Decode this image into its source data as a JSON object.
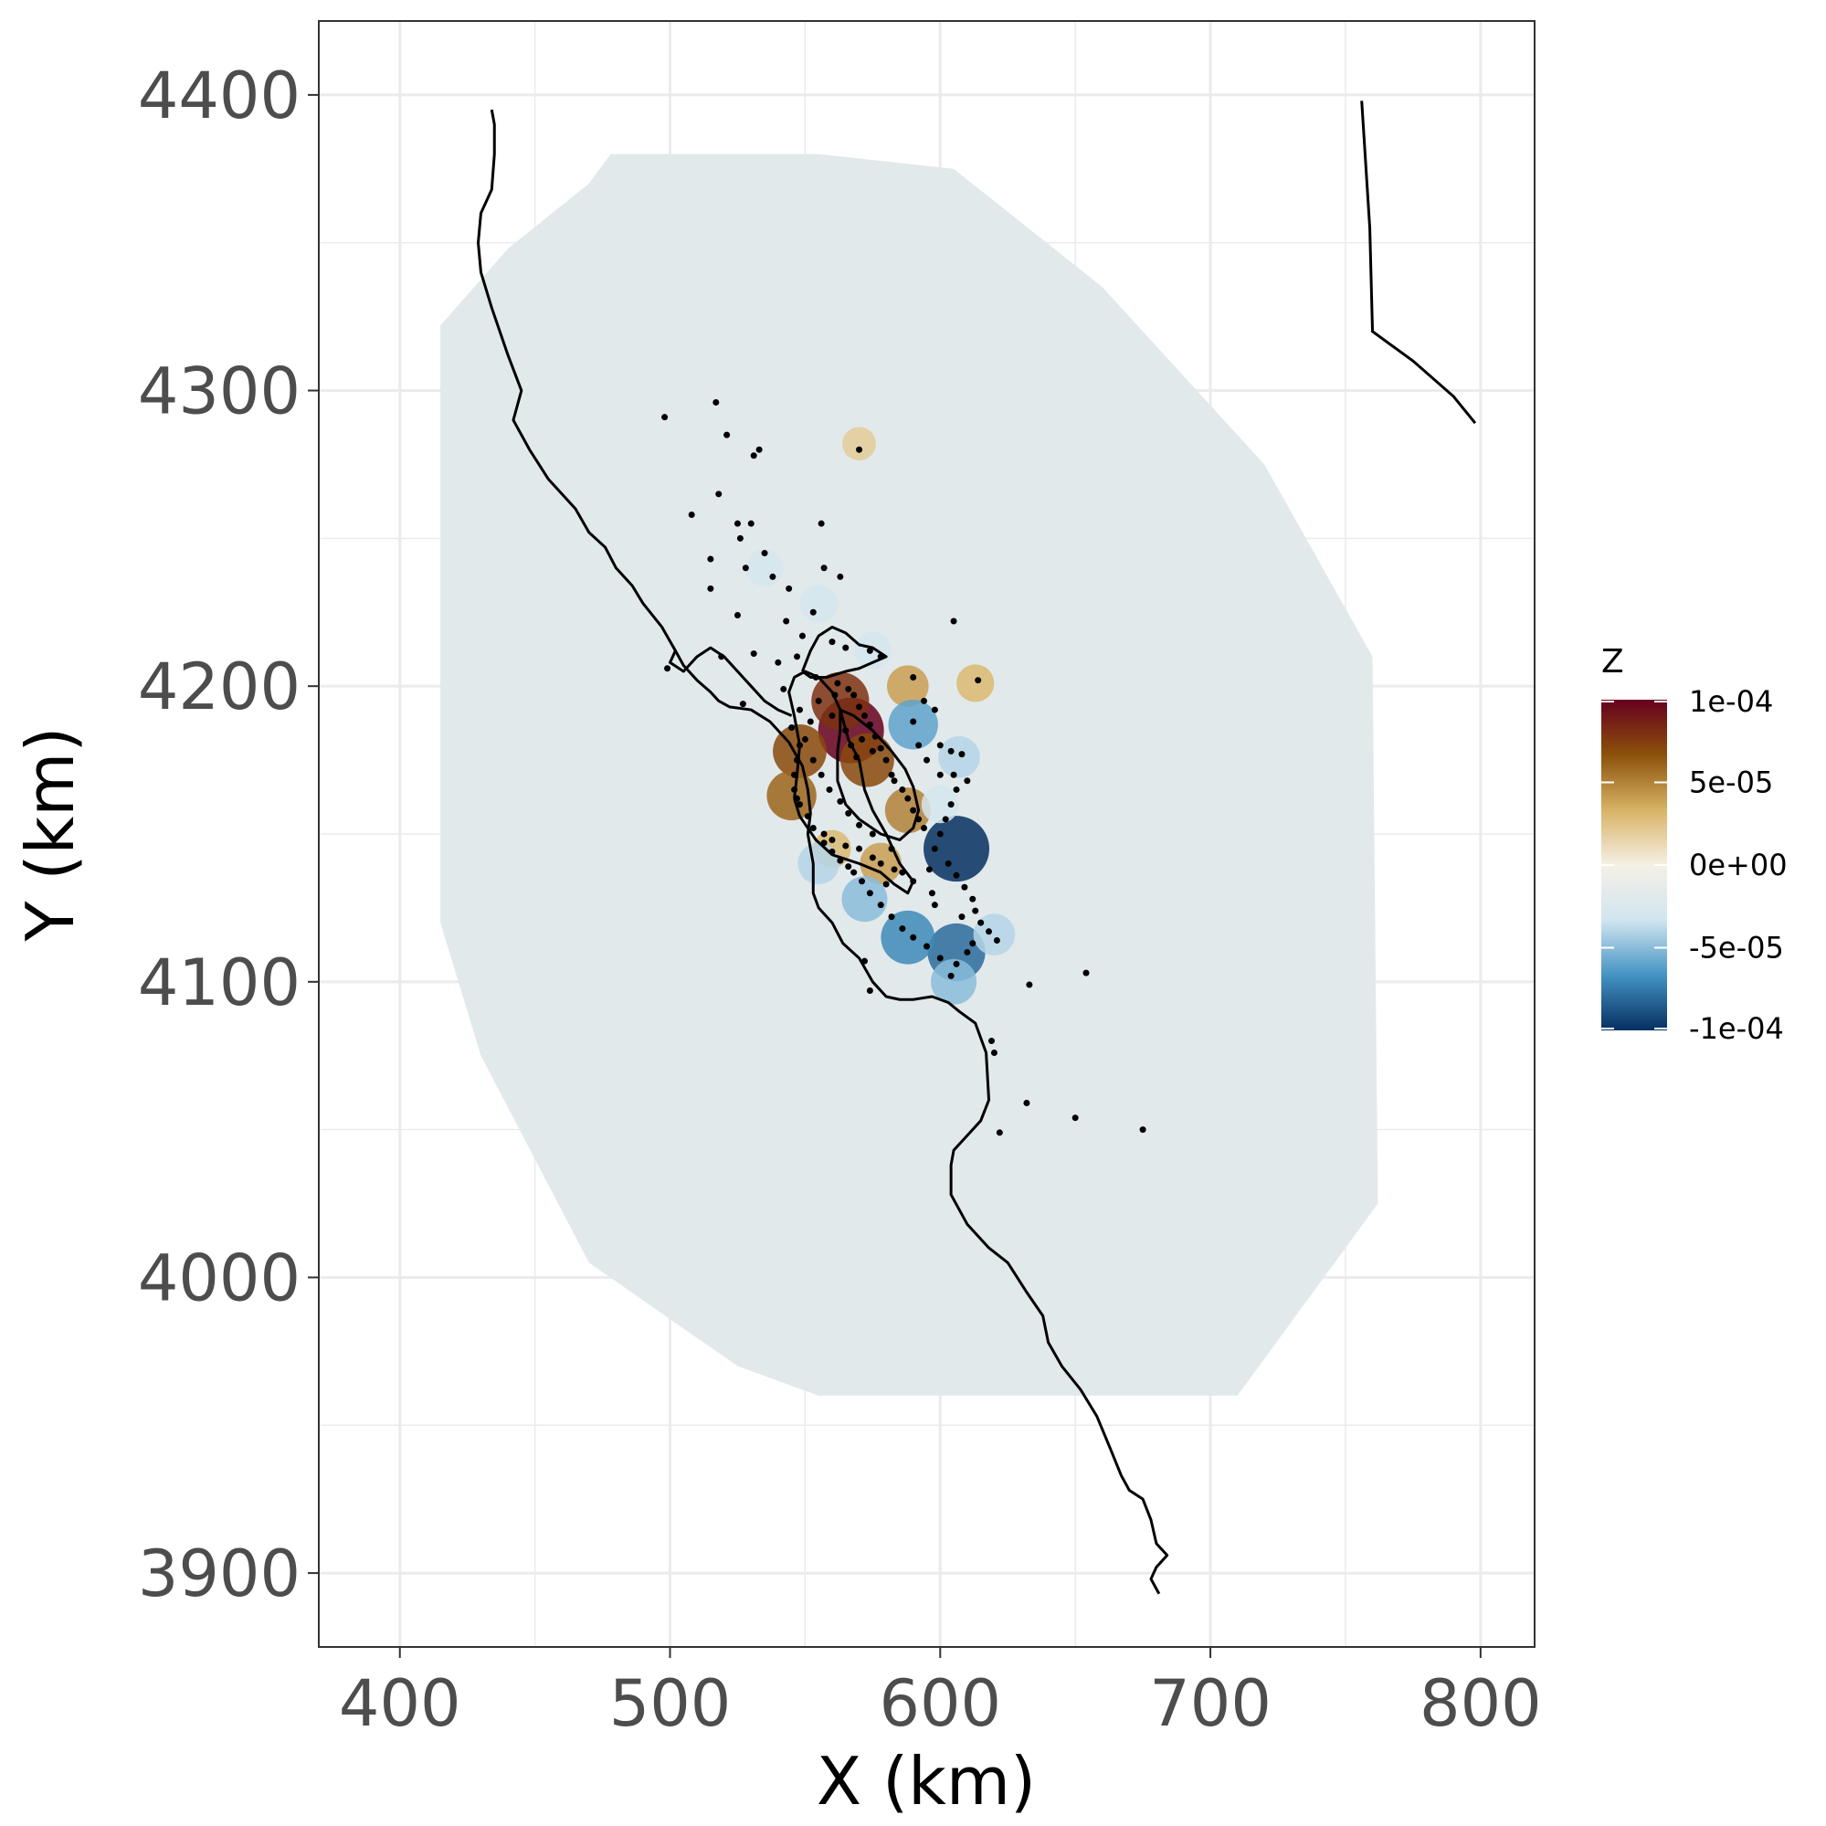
{
  "chart_data": {
    "type": "heatmap",
    "xlabel": "X (km)",
    "ylabel": "Y (km)",
    "xlim": [
      370,
      820
    ],
    "ylim": [
      3875,
      4425
    ],
    "x_ticks": [
      400,
      500,
      600,
      700,
      800
    ],
    "y_ticks": [
      3900,
      4000,
      4100,
      4200,
      4300,
      4400
    ],
    "x_tick_labels": [
      "400",
      "500",
      "600",
      "700",
      "800"
    ],
    "y_tick_labels": [
      "3900",
      "4000",
      "4100",
      "4200",
      "4300",
      "4400"
    ],
    "grid": true,
    "legend": {
      "title": "Z",
      "placement": "right",
      "ticks": [
        0.0001,
        5e-05,
        0,
        -5e-05,
        -0.0001
      ],
      "tick_labels": [
        "1e-04",
        "5e-05",
        "0e+00",
        "-5e-05",
        "-1e-04"
      ],
      "colors": [
        "#67001f",
        "#8c510a",
        "#d8b365",
        "#f5f0e6",
        "#d1e5f0",
        "#4393c3",
        "#053061"
      ],
      "range": [
        -0.0001,
        0.0001
      ]
    },
    "background_value_color": "#e2e9eb",
    "domain_polygon": [
      [
        415,
        4322
      ],
      [
        440,
        4348
      ],
      [
        470,
        4370
      ],
      [
        478,
        4380
      ],
      [
        555,
        4380
      ],
      [
        605,
        4375
      ],
      [
        660,
        4335
      ],
      [
        720,
        4275
      ],
      [
        760,
        4210
      ],
      [
        762,
        4025
      ],
      [
        730,
        3985
      ],
      [
        710,
        3960
      ],
      [
        555,
        3960
      ],
      [
        525,
        3970
      ],
      [
        470,
        4005
      ],
      [
        430,
        4075
      ],
      [
        415,
        4120
      ]
    ],
    "anomalies": [
      {
        "x": 567,
        "y": 4185,
        "z": 0.0001
      },
      {
        "x": 563,
        "y": 4195,
        "z": 8e-05
      },
      {
        "x": 573,
        "y": 4175,
        "z": 7e-05
      },
      {
        "x": 548,
        "y": 4178,
        "z": 7e-05
      },
      {
        "x": 545,
        "y": 4163,
        "z": 6e-05
      },
      {
        "x": 588,
        "y": 4158,
        "z": 5e-05
      },
      {
        "x": 578,
        "y": 4140,
        "z": 4e-05
      },
      {
        "x": 588,
        "y": 4200,
        "z": 4e-05
      },
      {
        "x": 560,
        "y": 4145,
        "z": 3e-05
      },
      {
        "x": 613,
        "y": 4201,
        "z": 3e-05
      },
      {
        "x": 570,
        "y": 4282,
        "z": 2e-05
      },
      {
        "x": 606,
        "y": 4145,
        "z": -0.0001
      },
      {
        "x": 606,
        "y": 4110,
        "z": -8e-05
      },
      {
        "x": 590,
        "y": 4187,
        "z": -6e-05
      },
      {
        "x": 588,
        "y": 4115,
        "z": -7e-05
      },
      {
        "x": 572,
        "y": 4128,
        "z": -5e-05
      },
      {
        "x": 620,
        "y": 4116,
        "z": -4e-05
      },
      {
        "x": 605,
        "y": 4100,
        "z": -5e-05
      },
      {
        "x": 607,
        "y": 4176,
        "z": -4e-05
      },
      {
        "x": 555,
        "y": 4140,
        "z": -4e-05
      },
      {
        "x": 535,
        "y": 4240,
        "z": -3e-05
      },
      {
        "x": 555,
        "y": 4228,
        "z": -3e-05
      },
      {
        "x": 575,
        "y": 4212,
        "z": -3e-05
      },
      {
        "x": 520,
        "y": 4245,
        "z": -2e-05
      },
      {
        "x": 600,
        "y": 4160,
        "z": -3e-05
      }
    ],
    "coastline": [
      [
        [
          434,
          4395
        ],
        [
          435,
          4390
        ],
        [
          435,
          4380
        ],
        [
          434,
          4368
        ],
        [
          430,
          4360
        ],
        [
          429,
          4350
        ],
        [
          430,
          4340
        ],
        [
          434,
          4328
        ],
        [
          440,
          4312
        ],
        [
          445,
          4300
        ],
        [
          442,
          4290
        ],
        [
          448,
          4280
        ],
        [
          455,
          4270
        ],
        [
          465,
          4260
        ],
        [
          470,
          4252
        ],
        [
          476,
          4247
        ],
        [
          480,
          4240
        ],
        [
          486,
          4234
        ],
        [
          490,
          4228
        ],
        [
          497,
          4220
        ],
        [
          502,
          4212
        ],
        [
          505,
          4207
        ],
        [
          510,
          4202
        ],
        [
          515,
          4198
        ],
        [
          518,
          4195
        ],
        [
          522,
          4193
        ],
        [
          530,
          4192
        ],
        [
          537,
          4188
        ],
        [
          544,
          4181
        ],
        [
          549,
          4173
        ],
        [
          551,
          4165
        ],
        [
          552,
          4157
        ],
        [
          551,
          4150
        ],
        [
          553,
          4140
        ],
        [
          553,
          4130
        ],
        [
          555,
          4125
        ],
        [
          560,
          4120
        ],
        [
          564,
          4113
        ],
        [
          570,
          4108
        ],
        [
          575,
          4100
        ],
        [
          580,
          4095
        ],
        [
          585,
          4094
        ],
        [
          590,
          4094
        ],
        [
          597,
          4095
        ],
        [
          603,
          4093
        ],
        [
          607,
          4090
        ],
        [
          613,
          4086
        ],
        [
          617,
          4076
        ],
        [
          618,
          4060
        ],
        [
          615,
          4053
        ],
        [
          610,
          4048
        ],
        [
          605,
          4043
        ],
        [
          604,
          4038
        ],
        [
          604,
          4028
        ],
        [
          610,
          4018
        ],
        [
          618,
          4010
        ],
        [
          625,
          4005
        ],
        [
          632,
          3995
        ],
        [
          638,
          3987
        ],
        [
          640,
          3978
        ],
        [
          645,
          3970
        ],
        [
          652,
          3962
        ],
        [
          658,
          3953
        ],
        [
          663,
          3942
        ],
        [
          667,
          3933
        ],
        [
          670,
          3928
        ],
        [
          675,
          3925
        ],
        [
          678,
          3918
        ],
        [
          680,
          3910
        ],
        [
          684,
          3906
        ],
        [
          680,
          3902
        ],
        [
          678,
          3898
        ],
        [
          681,
          3893
        ]
      ],
      [
        [
          546,
          4162
        ],
        [
          548,
          4156
        ],
        [
          554,
          4148
        ],
        [
          560,
          4143
        ],
        [
          570,
          4140
        ],
        [
          578,
          4137
        ],
        [
          583,
          4133
        ],
        [
          588,
          4130
        ],
        [
          590,
          4134
        ],
        [
          585,
          4140
        ],
        [
          580,
          4150
        ],
        [
          575,
          4158
        ],
        [
          572,
          4165
        ],
        [
          570,
          4175
        ],
        [
          566,
          4182
        ],
        [
          563,
          4192
        ],
        [
          560,
          4198
        ],
        [
          555,
          4203
        ],
        [
          550,
          4205
        ],
        [
          546,
          4203
        ],
        [
          544,
          4198
        ],
        [
          546,
          4190
        ],
        [
          548,
          4180
        ],
        [
          547,
          4170
        ],
        [
          546,
          4162
        ]
      ],
      [
        [
          502,
          4212
        ],
        [
          500,
          4208
        ],
        [
          505,
          4205
        ],
        [
          510,
          4210
        ],
        [
          515,
          4213
        ],
        [
          520,
          4210
        ],
        [
          525,
          4205
        ],
        [
          530,
          4200
        ],
        [
          535,
          4195
        ],
        [
          540,
          4192
        ],
        [
          545,
          4190
        ]
      ],
      [
        [
          563,
          4192
        ],
        [
          568,
          4190
        ],
        [
          575,
          4185
        ],
        [
          582,
          4178
        ],
        [
          587,
          4172
        ],
        [
          590,
          4166
        ],
        [
          592,
          4158
        ],
        [
          590,
          4152
        ],
        [
          585,
          4148
        ],
        [
          578,
          4150
        ],
        [
          570,
          4155
        ],
        [
          565,
          4160
        ],
        [
          562,
          4168
        ],
        [
          562,
          4178
        ],
        [
          563,
          4185
        ],
        [
          563,
          4192
        ]
      ],
      [
        [
          549,
          4205
        ],
        [
          552,
          4212
        ],
        [
          555,
          4217
        ],
        [
          560,
          4220
        ],
        [
          565,
          4218
        ],
        [
          570,
          4214
        ],
        [
          575,
          4213
        ],
        [
          580,
          4210
        ],
        [
          575,
          4208
        ],
        [
          570,
          4206
        ],
        [
          565,
          4205
        ],
        [
          558,
          4203
        ],
        [
          552,
          4203
        ],
        [
          549,
          4205
        ]
      ]
    ],
    "boundary": [
      [
        756,
        4398
      ],
      [
        759,
        4355
      ],
      [
        760,
        4320
      ],
      [
        775,
        4310
      ],
      [
        790,
        4298
      ],
      [
        798,
        4289
      ]
    ],
    "points": [
      [
        498,
        4291
      ],
      [
        517,
        4296
      ],
      [
        521,
        4285
      ],
      [
        533,
        4280
      ],
      [
        531,
        4278
      ],
      [
        570,
        4280
      ],
      [
        518,
        4265
      ],
      [
        508,
        4258
      ],
      [
        525,
        4255
      ],
      [
        530,
        4255
      ],
      [
        535,
        4245
      ],
      [
        526,
        4250
      ],
      [
        515,
        4243
      ],
      [
        528,
        4240
      ],
      [
        538,
        4237
      ],
      [
        544,
        4233
      ],
      [
        515,
        4233
      ],
      [
        556,
        4255
      ],
      [
        557,
        4240
      ],
      [
        563,
        4237
      ],
      [
        553,
        4225
      ],
      [
        525,
        4224
      ],
      [
        543,
        4222
      ],
      [
        560,
        4215
      ],
      [
        565,
        4213
      ],
      [
        574,
        4212
      ],
      [
        578,
        4210
      ],
      [
        549,
        4217
      ],
      [
        547,
        4210
      ],
      [
        531,
        4211
      ],
      [
        519,
        4210
      ],
      [
        540,
        4208
      ],
      [
        554,
        4203
      ],
      [
        561,
        4197
      ],
      [
        562,
        4201
      ],
      [
        566,
        4199
      ],
      [
        568,
        4197
      ],
      [
        570,
        4193
      ],
      [
        572,
        4190
      ],
      [
        574,
        4187
      ],
      [
        576,
        4183
      ],
      [
        578,
        4179
      ],
      [
        571,
        4182
      ],
      [
        575,
        4178
      ],
      [
        580,
        4175
      ],
      [
        582,
        4170
      ],
      [
        583,
        4168
      ],
      [
        586,
        4165
      ],
      [
        588,
        4162
      ],
      [
        590,
        4158
      ],
      [
        592,
        4155
      ],
      [
        594,
        4152
      ],
      [
        560,
        4190
      ],
      [
        565,
        4185
      ],
      [
        567,
        4180
      ],
      [
        569,
        4176
      ],
      [
        548,
        4180
      ],
      [
        547,
        4175
      ],
      [
        546,
        4170
      ],
      [
        546,
        4165
      ],
      [
        547,
        4162
      ],
      [
        548,
        4160
      ],
      [
        551,
        4156
      ],
      [
        553,
        4152
      ],
      [
        557,
        4150
      ],
      [
        560,
        4148
      ],
      [
        565,
        4146
      ],
      [
        570,
        4145
      ],
      [
        575,
        4142
      ],
      [
        578,
        4140
      ],
      [
        583,
        4138
      ],
      [
        586,
        4137
      ],
      [
        590,
        4134
      ],
      [
        596,
        4138
      ],
      [
        598,
        4145
      ],
      [
        600,
        4150
      ],
      [
        602,
        4155
      ],
      [
        604,
        4160
      ],
      [
        606,
        4165
      ],
      [
        600,
        4170
      ],
      [
        595,
        4175
      ],
      [
        592,
        4180
      ],
      [
        590,
        4188
      ],
      [
        594,
        4195
      ],
      [
        598,
        4192
      ],
      [
        600,
        4180
      ],
      [
        604,
        4178
      ],
      [
        608,
        4177
      ],
      [
        605,
        4170
      ],
      [
        610,
        4168
      ],
      [
        603,
        4140
      ],
      [
        606,
        4136
      ],
      [
        609,
        4132
      ],
      [
        612,
        4128
      ],
      [
        613,
        4124
      ],
      [
        615,
        4120
      ],
      [
        618,
        4117
      ],
      [
        621,
        4114
      ],
      [
        610,
        4110
      ],
      [
        606,
        4106
      ],
      [
        604,
        4102
      ],
      [
        600,
        4108
      ],
      [
        595,
        4112
      ],
      [
        590,
        4115
      ],
      [
        586,
        4118
      ],
      [
        582,
        4122
      ],
      [
        578,
        4126
      ],
      [
        574,
        4130
      ],
      [
        571,
        4134
      ],
      [
        568,
        4137
      ],
      [
        566,
        4139
      ],
      [
        563,
        4141
      ],
      [
        560,
        4144
      ],
      [
        557,
        4147
      ],
      [
        572,
        4107
      ],
      [
        574,
        4097
      ],
      [
        605,
        4222
      ],
      [
        614,
        4202
      ],
      [
        608,
        4122
      ],
      [
        612,
        4113
      ],
      [
        619,
        4080
      ],
      [
        620,
        4076
      ],
      [
        633,
        4099
      ],
      [
        654,
        4103
      ],
      [
        632,
        4059
      ],
      [
        622,
        4049
      ],
      [
        650,
        4054
      ],
      [
        675,
        4050
      ],
      [
        499,
        4206
      ],
      [
        527,
        4194
      ],
      [
        545,
        4186
      ],
      [
        542,
        4199
      ],
      [
        548,
        4192
      ],
      [
        555,
        4195
      ],
      [
        590,
        4203
      ],
      [
        597,
        4130
      ],
      [
        598,
        4126
      ],
      [
        580,
        4133
      ],
      [
        582,
        4145
      ],
      [
        575,
        4150
      ],
      [
        570,
        4153
      ],
      [
        566,
        4157
      ],
      [
        563,
        4161
      ],
      [
        559,
        4165
      ],
      [
        556,
        4170
      ],
      [
        553,
        4175
      ],
      [
        550,
        4182
      ],
      [
        552,
        4188
      ]
    ]
  }
}
